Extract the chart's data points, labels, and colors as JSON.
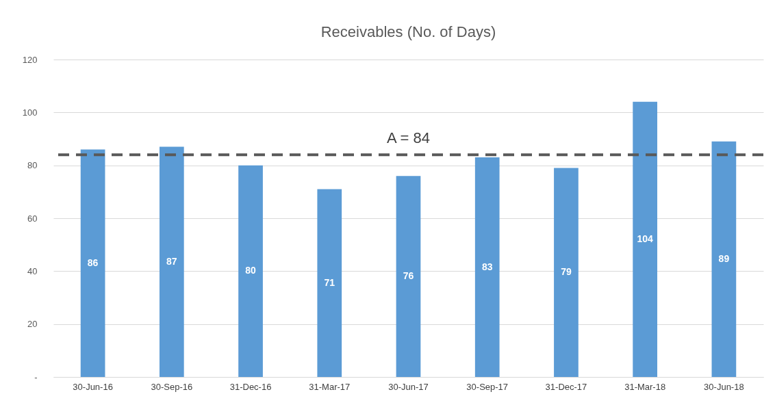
{
  "chart_data": {
    "type": "bar",
    "title": "Receivables (No. of Days)",
    "categories": [
      "30-Jun-16",
      "30-Sep-16",
      "31-Dec-16",
      "31-Mar-17",
      "30-Jun-17",
      "30-Sep-17",
      "31-Dec-17",
      "31-Mar-18",
      "30-Jun-18"
    ],
    "values": [
      86,
      87,
      80,
      71,
      76,
      83,
      79,
      104,
      89
    ],
    "color": "#5b9bd5",
    "ylim": [
      0,
      120
    ],
    "yticks": [
      {
        "value": 0,
        "label": "-"
      },
      20,
      40,
      60,
      80,
      100,
      120
    ],
    "grid": "y",
    "data_labels": true,
    "ref_lines": [
      {
        "axis": "y",
        "value": 84,
        "label": "A = 84",
        "color": "#595959",
        "line_style": "dashed"
      }
    ]
  }
}
